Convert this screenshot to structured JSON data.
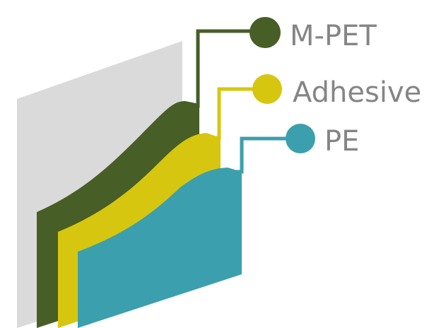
{
  "layers": [
    {
      "key": "mpet",
      "label": "M-PET",
      "color": "#475e26"
    },
    {
      "key": "adhesive",
      "label": "Adhesive",
      "color": "#d7c60f"
    },
    {
      "key": "pe",
      "label": "PE",
      "color": "#3c9fad"
    }
  ],
  "base_sheet_color": "#dadada",
  "label_text_color": "#858585"
}
